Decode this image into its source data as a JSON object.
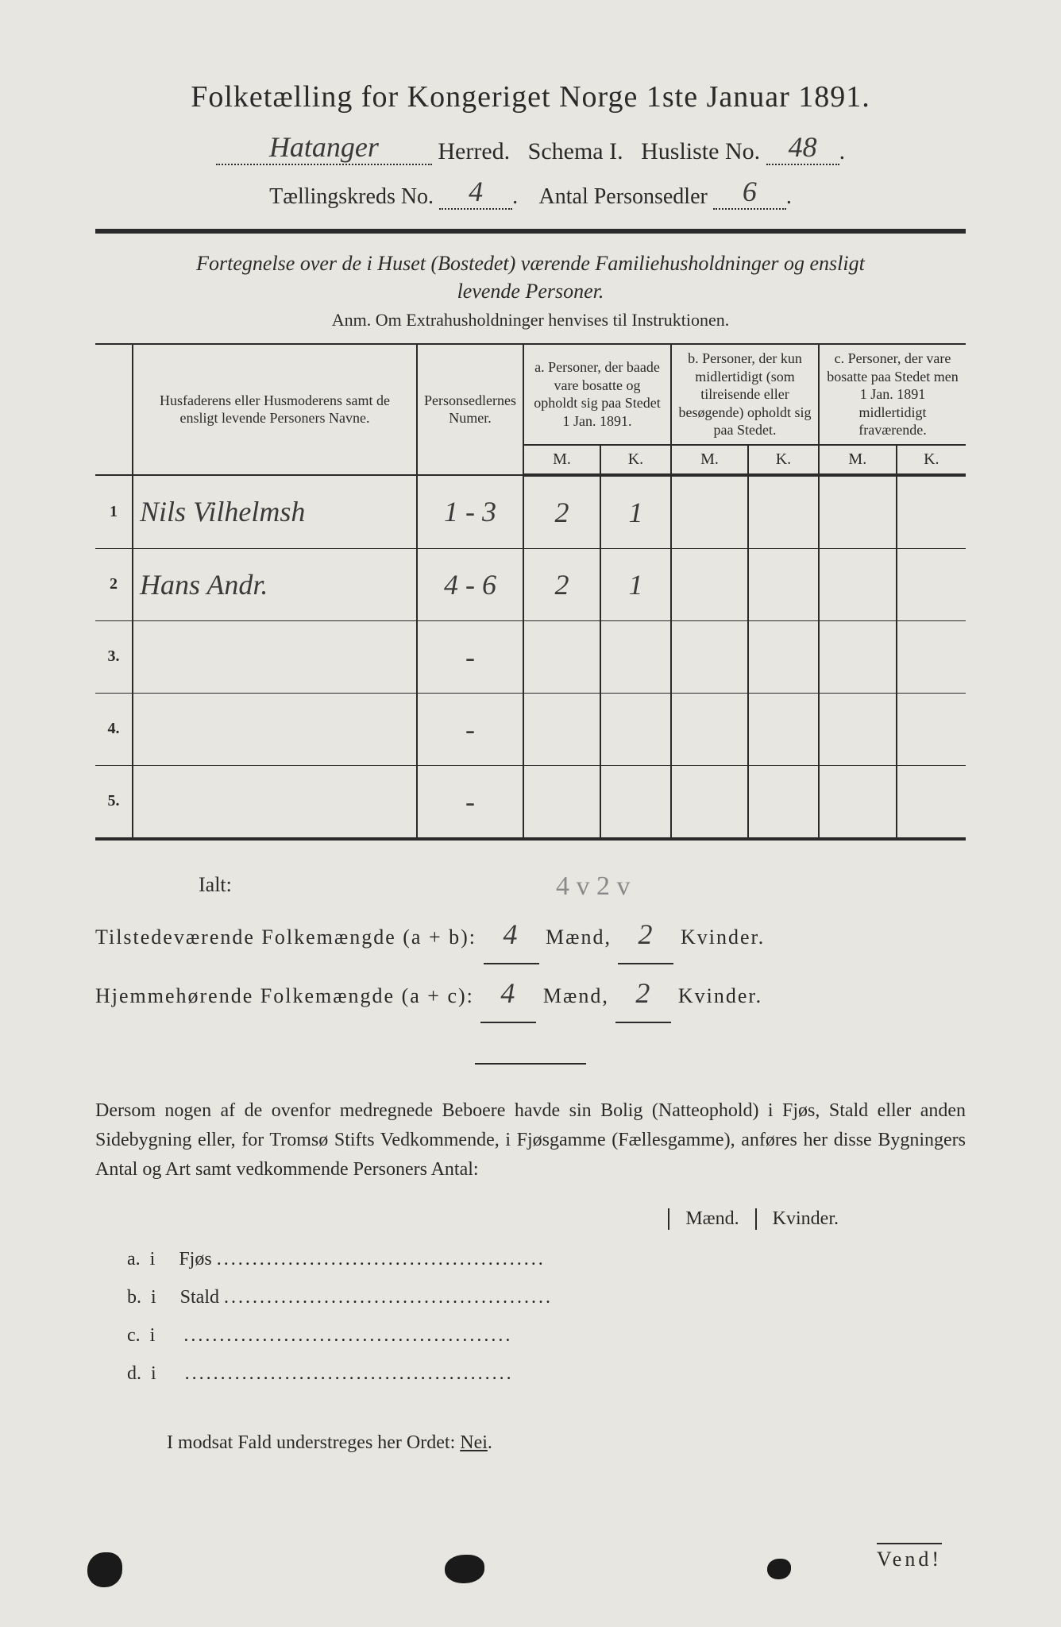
{
  "header": {
    "title": "Folketælling for Kongeriget Norge 1ste Januar 1891.",
    "herred_hw": "Hatanger",
    "herred_label": "Herred.",
    "schema_label": "Schema I.",
    "husliste_label": "Husliste No.",
    "husliste_no_hw": "48",
    "kreds_label": "Tællingskreds No.",
    "kreds_no_hw": "4",
    "personsedler_label": "Antal Personsedler",
    "personsedler_hw": "6"
  },
  "subtitle": {
    "line1": "Fortegnelse over de i Huset (Bostedet) værende Familiehusholdninger og ensligt",
    "line2": "levende Personer.",
    "anm": "Anm. Om Extrahusholdninger henvises til Instruktionen."
  },
  "table": {
    "col_names": "Husfaderens eller Husmoderens samt de ensligt levende Personers Navne.",
    "col_num": "Personsedlernes Numer.",
    "col_a": "a.\nPersoner, der baade vare bosatte og opholdt sig paa Stedet 1 Jan. 1891.",
    "col_b": "b.\nPersoner, der kun midlertidigt (som tilreisende eller besøgende) opholdt sig paa Stedet.",
    "col_c": "c.\nPersoner, der vare bosatte paa Stedet men 1 Jan. 1891 midlertidigt fraværende.",
    "m": "M.",
    "k": "K.",
    "rows": [
      {
        "n": "1",
        "name_hw": "Nils Vilhelmsh",
        "num_hw": "1 - 3",
        "a_m": "2",
        "a_k": "1",
        "b_m": "",
        "b_k": "",
        "c_m": "",
        "c_k": ""
      },
      {
        "n": "2",
        "name_hw": "Hans Andr.",
        "num_hw": "4 - 6",
        "a_m": "2",
        "a_k": "1",
        "b_m": "",
        "b_k": "",
        "c_m": "",
        "c_k": ""
      },
      {
        "n": "3.",
        "name_hw": "",
        "num_hw": "-",
        "a_m": "",
        "a_k": "",
        "b_m": "",
        "b_k": "",
        "c_m": "",
        "c_k": ""
      },
      {
        "n": "4.",
        "name_hw": "",
        "num_hw": "-",
        "a_m": "",
        "a_k": "",
        "b_m": "",
        "b_k": "",
        "c_m": "",
        "c_k": ""
      },
      {
        "n": "5.",
        "name_hw": "",
        "num_hw": "-",
        "a_m": "",
        "a_k": "",
        "b_m": "",
        "b_k": "",
        "c_m": "",
        "c_k": ""
      }
    ]
  },
  "totals": {
    "ialt": "Ialt:",
    "pencil_note": "4 v 2 v",
    "line_ab_label": "Tilstedeværende Folkemængde (a + b):",
    "line_ac_label": "Hjemmehørende Folkemængde (a + c):",
    "maend": "Mænd,",
    "kvinder": "Kvinder.",
    "ab_m": "4",
    "ab_k": "2",
    "ac_m": "4",
    "ac_k": "2"
  },
  "para": {
    "text": "Dersom nogen af de ovenfor medregnede Beboere havde sin Bolig (Natteophold) i Fjøs, Stald eller anden Sidebygning eller, for Tromsø Stifts Vedkommende, i Fjøsgamme (Fællesgamme), anføres her disse Bygningers Antal og Art samt vedkommende Personers Antal:"
  },
  "sidetable": {
    "maend": "Mænd.",
    "kvinder": "Kvinder.",
    "rows": [
      {
        "l": "a.",
        "i": "i",
        "t": "Fjøs"
      },
      {
        "l": "b.",
        "i": "i",
        "t": "Stald"
      },
      {
        "l": "c.",
        "i": "i",
        "t": ""
      },
      {
        "l": "d.",
        "i": "i",
        "t": ""
      }
    ]
  },
  "footer": {
    "nei": "I modsat Fald understreges her Ordet: Nei.",
    "vend": "Vend!"
  }
}
